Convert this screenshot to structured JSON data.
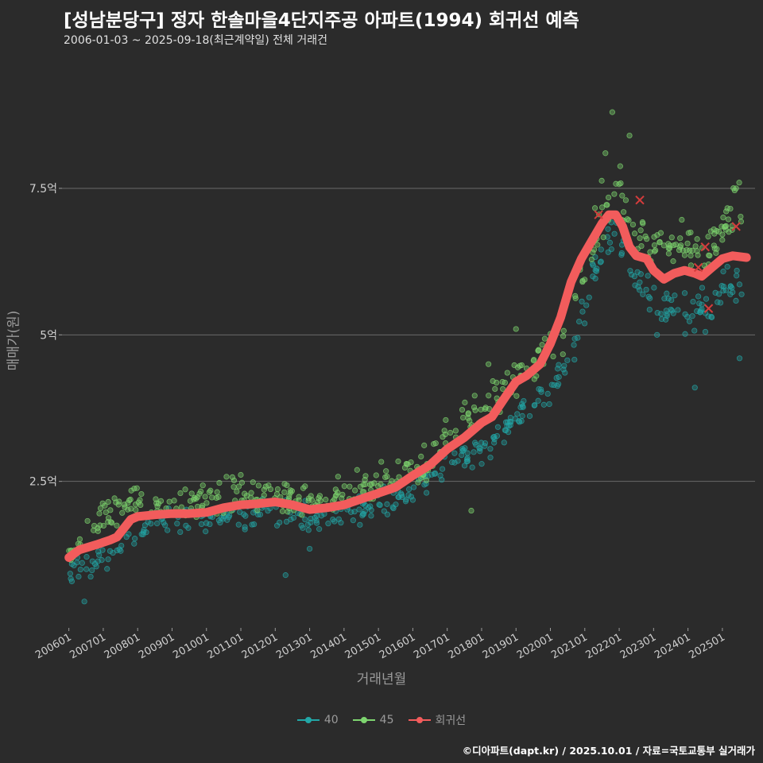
{
  "chart_data": {
    "type": "scatter",
    "title": "[성남분당구] 정자 한솔마을4단지주공 아파트(1994) 회귀선 예측",
    "subtitle": "2006-01-03 ~ 2025-09-18(최근계약일) 전체 거래건",
    "xlabel": "거래년월",
    "ylabel": "매매가(원)",
    "x_range": [
      2005.8,
      2025.95
    ],
    "ylim": [
      0.0,
      9.9
    ],
    "y_ticks": [
      {
        "value": 2.5,
        "label": "2.5억"
      },
      {
        "value": 5.0,
        "label": "5억"
      },
      {
        "value": 7.5,
        "label": "7.5억"
      }
    ],
    "x_ticks": [
      {
        "value": 2006.0,
        "label": "200601"
      },
      {
        "value": 2007.0,
        "label": "200701"
      },
      {
        "value": 2008.0,
        "label": "200801"
      },
      {
        "value": 2009.0,
        "label": "200901"
      },
      {
        "value": 2010.0,
        "label": "201001"
      },
      {
        "value": 2011.0,
        "label": "201101"
      },
      {
        "value": 2012.0,
        "label": "201201"
      },
      {
        "value": 2013.0,
        "label": "201301"
      },
      {
        "value": 2014.0,
        "label": "201401"
      },
      {
        "value": 2015.0,
        "label": "201501"
      },
      {
        "value": 2016.0,
        "label": "201601"
      },
      {
        "value": 2017.0,
        "label": "201701"
      },
      {
        "value": 2018.0,
        "label": "201801"
      },
      {
        "value": 2019.0,
        "label": "201901"
      },
      {
        "value": 2020.0,
        "label": "202001"
      },
      {
        "value": 2021.0,
        "label": "202101"
      },
      {
        "value": 2022.0,
        "label": "202201"
      },
      {
        "value": 2023.0,
        "label": "202301"
      },
      {
        "value": 2024.0,
        "label": "202401"
      },
      {
        "value": 2025.0,
        "label": "202501"
      }
    ],
    "series": [
      {
        "name": "40",
        "color": "#22a7a7",
        "trend": [
          [
            2006.0,
            1.0
          ],
          [
            2006.5,
            1.05
          ],
          [
            2007.0,
            1.2
          ],
          [
            2007.5,
            1.4
          ],
          [
            2008.0,
            1.65
          ],
          [
            2008.5,
            1.8
          ],
          [
            2009.0,
            1.8
          ],
          [
            2010.0,
            1.85
          ],
          [
            2011.0,
            1.95
          ],
          [
            2012.0,
            1.95
          ],
          [
            2013.0,
            1.85
          ],
          [
            2014.0,
            1.9
          ],
          [
            2015.0,
            2.1
          ],
          [
            2016.0,
            2.3
          ],
          [
            2016.5,
            2.55
          ],
          [
            2017.0,
            2.8
          ],
          [
            2017.5,
            2.95
          ],
          [
            2018.0,
            3.1
          ],
          [
            2018.5,
            3.3
          ],
          [
            2019.0,
            3.5
          ],
          [
            2019.5,
            3.85
          ],
          [
            2020.0,
            4.1
          ],
          [
            2020.5,
            4.6
          ],
          [
            2021.0,
            5.6
          ],
          [
            2021.5,
            6.5
          ],
          [
            2022.0,
            6.8
          ],
          [
            2022.5,
            6.0
          ],
          [
            2023.0,
            5.6
          ],
          [
            2023.5,
            5.5
          ],
          [
            2024.0,
            5.4
          ],
          [
            2024.5,
            5.5
          ],
          [
            2025.0,
            5.7
          ],
          [
            2025.6,
            5.9
          ]
        ],
        "spread": 0.14,
        "points_per_year": 20,
        "outliers": [
          [
            2006.45,
            0.45
          ],
          [
            2012.3,
            0.9
          ],
          [
            2013.0,
            1.35
          ],
          [
            2016.8,
            2.6
          ],
          [
            2023.1,
            5.0
          ],
          [
            2024.2,
            4.1
          ],
          [
            2025.5,
            4.6
          ]
        ]
      },
      {
        "name": "45",
        "color": "#7ed56f",
        "trend": [
          [
            2006.0,
            1.25
          ],
          [
            2006.4,
            1.35
          ],
          [
            2006.7,
            1.7
          ],
          [
            2007.0,
            1.95
          ],
          [
            2007.5,
            2.05
          ],
          [
            2008.0,
            2.1
          ],
          [
            2008.5,
            2.1
          ],
          [
            2009.0,
            2.05
          ],
          [
            2010.0,
            2.15
          ],
          [
            2011.0,
            2.3
          ],
          [
            2012.0,
            2.3
          ],
          [
            2013.0,
            2.15
          ],
          [
            2014.0,
            2.25
          ],
          [
            2015.0,
            2.5
          ],
          [
            2016.0,
            2.65
          ],
          [
            2016.5,
            2.8
          ],
          [
            2017.0,
            3.3
          ],
          [
            2017.5,
            3.5
          ],
          [
            2018.0,
            3.7
          ],
          [
            2018.5,
            3.95
          ],
          [
            2019.0,
            4.3
          ],
          [
            2019.5,
            4.5
          ],
          [
            2020.0,
            4.65
          ],
          [
            2020.5,
            5.3
          ],
          [
            2021.0,
            6.2
          ],
          [
            2021.5,
            7.1
          ],
          [
            2022.0,
            7.5
          ],
          [
            2022.5,
            6.8
          ],
          [
            2023.0,
            6.5
          ],
          [
            2023.5,
            6.6
          ],
          [
            2024.0,
            6.5
          ],
          [
            2024.5,
            6.3
          ],
          [
            2025.0,
            6.8
          ],
          [
            2025.6,
            7.3
          ]
        ],
        "spread": 0.16,
        "points_per_year": 22,
        "outliers": [
          [
            2021.8,
            8.8
          ],
          [
            2022.3,
            8.4
          ],
          [
            2021.6,
            8.1
          ],
          [
            2025.4,
            7.5
          ],
          [
            2019.0,
            5.1
          ],
          [
            2018.2,
            4.5
          ],
          [
            2017.7,
            2.0
          ]
        ]
      },
      {
        "name": "회귀선",
        "color": "#f25c5c",
        "points": [
          [
            2006.0,
            1.2
          ],
          [
            2006.3,
            1.33
          ],
          [
            2006.8,
            1.42
          ],
          [
            2007.2,
            1.5
          ],
          [
            2007.4,
            1.55
          ],
          [
            2007.8,
            1.85
          ],
          [
            2008.0,
            1.9
          ],
          [
            2008.5,
            1.93
          ],
          [
            2009.0,
            1.95
          ],
          [
            2009.5,
            1.95
          ],
          [
            2010.0,
            1.97
          ],
          [
            2010.5,
            2.05
          ],
          [
            2011.0,
            2.1
          ],
          [
            2011.5,
            2.12
          ],
          [
            2012.0,
            2.15
          ],
          [
            2012.5,
            2.1
          ],
          [
            2013.0,
            2.02
          ],
          [
            2013.5,
            2.05
          ],
          [
            2014.0,
            2.1
          ],
          [
            2014.5,
            2.2
          ],
          [
            2015.0,
            2.3
          ],
          [
            2015.5,
            2.4
          ],
          [
            2016.0,
            2.6
          ],
          [
            2016.5,
            2.78
          ],
          [
            2017.0,
            3.05
          ],
          [
            2017.5,
            3.25
          ],
          [
            2018.0,
            3.5
          ],
          [
            2018.3,
            3.6
          ],
          [
            2018.7,
            3.95
          ],
          [
            2019.0,
            4.2
          ],
          [
            2019.3,
            4.3
          ],
          [
            2019.7,
            4.5
          ],
          [
            2020.0,
            4.85
          ],
          [
            2020.3,
            5.3
          ],
          [
            2020.6,
            5.9
          ],
          [
            2020.9,
            6.3
          ],
          [
            2021.2,
            6.6
          ],
          [
            2021.5,
            6.9
          ],
          [
            2021.7,
            7.05
          ],
          [
            2021.9,
            7.05
          ],
          [
            2022.1,
            6.85
          ],
          [
            2022.3,
            6.5
          ],
          [
            2022.5,
            6.35
          ],
          [
            2022.8,
            6.3
          ],
          [
            2023.0,
            6.1
          ],
          [
            2023.3,
            5.95
          ],
          [
            2023.6,
            6.05
          ],
          [
            2023.9,
            6.1
          ],
          [
            2024.2,
            6.05
          ],
          [
            2024.4,
            6.0
          ],
          [
            2024.7,
            6.15
          ],
          [
            2025.0,
            6.3
          ],
          [
            2025.3,
            6.35
          ],
          [
            2025.7,
            6.32
          ]
        ],
        "markers": [
          [
            2021.4,
            7.05
          ],
          [
            2022.6,
            7.3
          ],
          [
            2024.5,
            6.5
          ],
          [
            2024.6,
            5.45
          ],
          [
            2025.4,
            6.85
          ],
          [
            2024.3,
            6.15
          ]
        ]
      }
    ],
    "legend": [
      {
        "name": "40",
        "color": "#22a7a7"
      },
      {
        "name": "45",
        "color": "#7ed56f"
      },
      {
        "name": "회귀선",
        "color": "#f25c5c"
      }
    ],
    "legend_position": "bottom",
    "grid": true
  },
  "caption": "©디아파트(dapt.kr) / 2025.10.01 / 자료=국토교통부 실거래가"
}
